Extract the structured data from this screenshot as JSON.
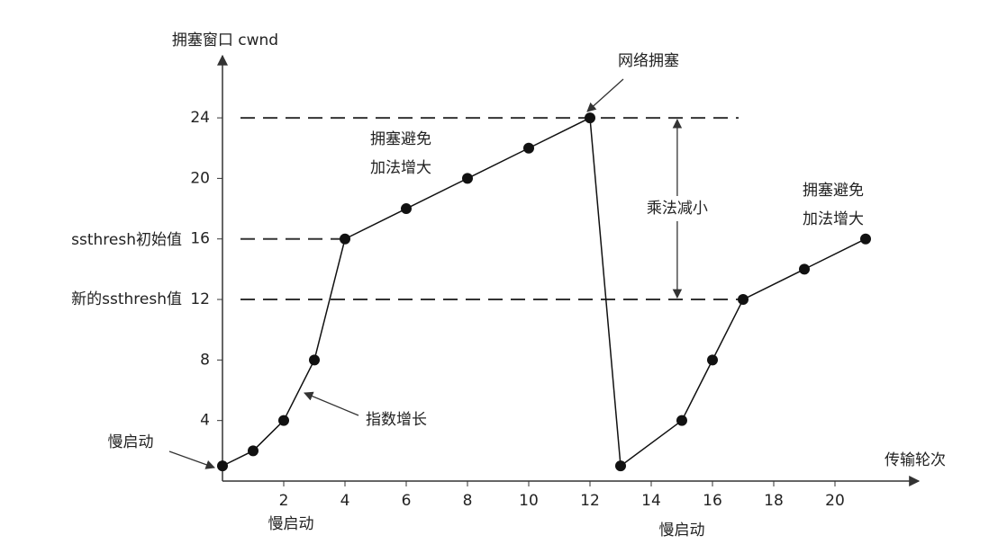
{
  "chart_data": {
    "type": "line",
    "y_axis_label": "拥塞窗口 cwnd",
    "x_axis_label": "传输轮次",
    "x": [
      0,
      1,
      2,
      3,
      4,
      6,
      8,
      10,
      12,
      13,
      15,
      16,
      17,
      19,
      21
    ],
    "series": [
      {
        "color": "#111111",
        "values": [
          1,
          2,
          4,
          8,
          16,
          18,
          20,
          22,
          24,
          1,
          4,
          8,
          12,
          14,
          16
        ]
      }
    ],
    "xlim": [
      0,
      23
    ],
    "ylim": [
      0,
      28
    ],
    "xticks": [
      2,
      4,
      6,
      8,
      10,
      12,
      14,
      16,
      18,
      20
    ],
    "yticks": [
      4,
      8,
      12,
      16,
      20,
      24
    ],
    "reference_lines": [
      24,
      16,
      12
    ],
    "annotations": [
      [
        "网络拥塞"
      ],
      [
        "拥塞避免",
        "加法增大"
      ],
      [
        "乘法减小"
      ],
      [
        "拥塞避免",
        "加法增大"
      ],
      [
        "指数增长"
      ],
      [
        "慢启动"
      ],
      [
        "慢启动"
      ],
      [
        "慢启动"
      ],
      [
        "ssthresh初始值"
      ],
      [
        "新的ssthresh值"
      ]
    ]
  }
}
